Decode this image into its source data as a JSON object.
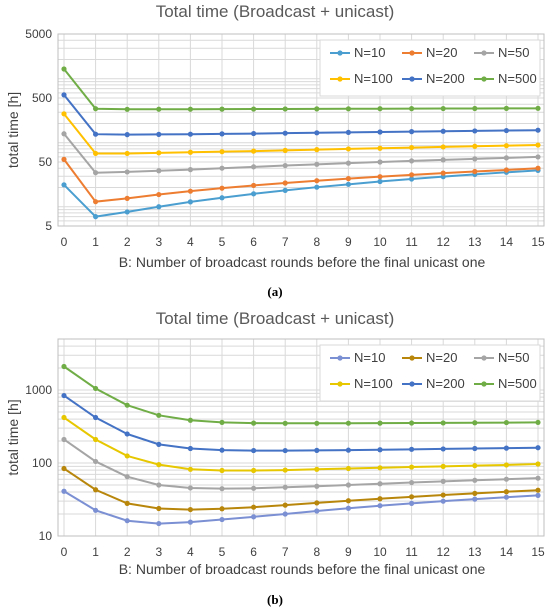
{
  "chart_data": [
    {
      "type": "line",
      "title": "Total time (Broadcast + unicast)",
      "xlabel": "B: Number of broadcast rounds before the final unicast one",
      "ylabel": "total time [h]",
      "caption": "(a)",
      "yscale": "log",
      "ylim": [
        5,
        5000
      ],
      "yticks": [
        "5",
        "50",
        "500",
        "5000"
      ],
      "ytick_values": [
        5,
        50,
        500,
        5000
      ],
      "xlim": [
        0,
        15
      ],
      "x": [
        0,
        1,
        2,
        3,
        4,
        5,
        6,
        7,
        8,
        9,
        10,
        11,
        12,
        13,
        14,
        15
      ],
      "grid": true,
      "legend_position": "top-right",
      "series": [
        {
          "name": "N=10",
          "color": "#4a9fd0",
          "values": [
            22,
            7,
            8.3,
            10,
            11.9,
            13.8,
            15.9,
            18,
            20.2,
            22.4,
            24.8,
            27.1,
            29.5,
            32,
            34.5,
            37
          ]
        },
        {
          "name": "N=20",
          "color": "#ed7d31",
          "values": [
            55,
            12,
            13.5,
            15.5,
            17.5,
            19.5,
            21.5,
            23.5,
            25.5,
            27.5,
            29.5,
            31.5,
            33.5,
            35.5,
            37.5,
            40
          ]
        },
        {
          "name": "N=50",
          "color": "#a5a5a5",
          "values": [
            138,
            34,
            35,
            36.5,
            38,
            40,
            42,
            44,
            46,
            48,
            50,
            52,
            54,
            56,
            58,
            60
          ]
        },
        {
          "name": "N=100",
          "color": "#ffc000",
          "values": [
            283,
            68,
            68,
            69.5,
            71,
            72.5,
            74,
            76,
            78,
            80,
            82,
            84,
            86,
            88,
            90,
            92
          ]
        },
        {
          "name": "N=200",
          "color": "#4472c4",
          "values": [
            560,
            136,
            134,
            135,
            136,
            137.5,
            139,
            141,
            143,
            145,
            147,
            149,
            151,
            153,
            155,
            157
          ]
        },
        {
          "name": "N=500",
          "color": "#70ad47",
          "values": [
            1420,
            340,
            333,
            334,
            334,
            335,
            336,
            337,
            338,
            339,
            340,
            341,
            342,
            343,
            344,
            345
          ]
        }
      ]
    },
    {
      "type": "line",
      "title": "Total time (Broadcast + unicast)",
      "xlabel": "B: Number of broadcast rounds before the final unicast one",
      "ylabel": "total time [h]",
      "caption": "(b)",
      "yscale": "log",
      "ylim": [
        10,
        5000
      ],
      "yticks": [
        "10",
        "100",
        "1000"
      ],
      "ytick_values": [
        10,
        100,
        1000
      ],
      "xlim": [
        0,
        15
      ],
      "x": [
        0,
        1,
        2,
        3,
        4,
        5,
        6,
        7,
        8,
        9,
        10,
        11,
        12,
        13,
        14,
        15
      ],
      "grid": true,
      "legend_position": "top-right",
      "series": [
        {
          "name": "N=10",
          "color": "#7b8fd3",
          "values": [
            41,
            22.5,
            16.2,
            14.8,
            15.5,
            16.8,
            18.3,
            20,
            22,
            24,
            26,
            28,
            30,
            32,
            34,
            36
          ]
        },
        {
          "name": "N=20",
          "color": "#b8860b",
          "values": [
            84,
            43,
            28,
            23.8,
            23,
            23.6,
            24.8,
            26.5,
            28.4,
            30.4,
            32.4,
            34.4,
            36.4,
            38.4,
            40.4,
            42.4
          ]
        },
        {
          "name": "N=50",
          "color": "#a5a5a5",
          "values": [
            210,
            105,
            65,
            50,
            45.5,
            44.5,
            45,
            46.5,
            48,
            50,
            52,
            54,
            56,
            58,
            60,
            62
          ]
        },
        {
          "name": "N=100",
          "color": "#e6c700",
          "values": [
            420,
            210,
            125,
            95,
            82,
            79,
            79,
            80,
            82,
            84,
            86,
            88,
            90,
            92,
            94,
            97
          ]
        },
        {
          "name": "N=200",
          "color": "#4472c4",
          "values": [
            840,
            420,
            250,
            180,
            158,
            150,
            148,
            148,
            149,
            150,
            152,
            154,
            156,
            158,
            160,
            162
          ]
        },
        {
          "name": "N=500",
          "color": "#70ad47",
          "values": [
            2100,
            1050,
            620,
            450,
            385,
            360,
            352,
            350,
            350,
            351,
            352,
            353,
            354,
            356,
            358,
            360
          ]
        }
      ]
    }
  ]
}
